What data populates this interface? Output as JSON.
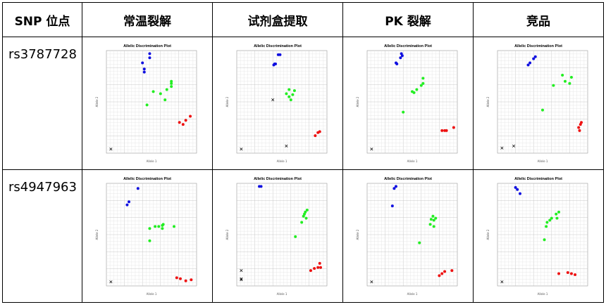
{
  "table": {
    "headers": [
      "SNP 位点",
      "常温裂解",
      "试剂盒提取",
      "PK 裂解",
      "竞品"
    ],
    "rows": [
      {
        "snp": "rs3787728"
      },
      {
        "snp": "rs4947963"
      }
    ]
  },
  "plot_common": {
    "title": "Allelic Discrimination Plot",
    "xlabel": "Allele 1",
    "ylabel": "Allele 2"
  },
  "colors": {
    "allele2": "#1010e0",
    "heterozygous": "#22ee22",
    "allele1": "#ee1111",
    "undetermined": "#000000"
  },
  "chart_data": [
    {
      "type": "scatter",
      "row": "rs3787728",
      "method": "常温裂解",
      "xlim": [
        0,
        1
      ],
      "ylim": [
        0,
        1
      ],
      "grid": true,
      "blue": [
        [
          0.48,
          0.97
        ],
        [
          0.48,
          0.93
        ],
        [
          0.4,
          0.88
        ],
        [
          0.42,
          0.82
        ],
        [
          0.42,
          0.79
        ]
      ],
      "green": [
        [
          0.45,
          0.47
        ],
        [
          0.52,
          0.6
        ],
        [
          0.6,
          0.58
        ],
        [
          0.67,
          0.62
        ],
        [
          0.72,
          0.65
        ],
        [
          0.72,
          0.68
        ],
        [
          0.72,
          0.7
        ],
        [
          0.65,
          0.52
        ]
      ],
      "red": [
        [
          0.81,
          0.3
        ],
        [
          0.85,
          0.28
        ],
        [
          0.88,
          0.32
        ],
        [
          0.93,
          0.36
        ]
      ],
      "x": [
        [
          0.05,
          0.04
        ]
      ]
    },
    {
      "type": "scatter",
      "row": "rs3787728",
      "method": "试剂盒提取",
      "xlim": [
        0,
        1
      ],
      "ylim": [
        0,
        1
      ],
      "grid": true,
      "blue": [
        [
          0.46,
          0.96
        ],
        [
          0.48,
          0.96
        ],
        [
          0.42,
          0.87
        ],
        [
          0.41,
          0.86
        ],
        [
          0.43,
          0.87
        ]
      ],
      "green": [
        [
          0.55,
          0.58
        ],
        [
          0.58,
          0.55
        ],
        [
          0.62,
          0.57
        ],
        [
          0.64,
          0.61
        ],
        [
          0.58,
          0.62
        ],
        [
          0.6,
          0.52
        ]
      ],
      "red": [
        [
          0.87,
          0.17
        ],
        [
          0.9,
          0.2
        ],
        [
          0.92,
          0.21
        ]
      ],
      "x": [
        [
          0.05,
          0.04
        ],
        [
          0.4,
          0.52
        ],
        [
          0.55,
          0.07
        ]
      ]
    },
    {
      "type": "scatter",
      "row": "rs3787728",
      "method": "PK 裂解",
      "xlim": [
        0,
        1
      ],
      "ylim": [
        0,
        1
      ],
      "grid": true,
      "blue": [
        [
          0.38,
          0.97
        ],
        [
          0.39,
          0.95
        ],
        [
          0.37,
          0.93
        ],
        [
          0.32,
          0.88
        ],
        [
          0.33,
          0.87
        ]
      ],
      "green": [
        [
          0.5,
          0.6
        ],
        [
          0.55,
          0.62
        ],
        [
          0.6,
          0.66
        ],
        [
          0.62,
          0.68
        ],
        [
          0.62,
          0.73
        ],
        [
          0.52,
          0.59
        ],
        [
          0.4,
          0.4
        ]
      ],
      "red": [
        [
          0.83,
          0.22
        ],
        [
          0.86,
          0.22
        ],
        [
          0.88,
          0.22
        ],
        [
          0.96,
          0.25
        ]
      ],
      "x": [
        [
          0.05,
          0.04
        ]
      ]
    },
    {
      "type": "scatter",
      "row": "rs3787728",
      "method": "竞品",
      "xlim": [
        0,
        1
      ],
      "ylim": [
        0,
        1
      ],
      "grid": true,
      "blue": [
        [
          0.4,
          0.92
        ],
        [
          0.42,
          0.94
        ],
        [
          0.36,
          0.88
        ],
        [
          0.34,
          0.86
        ]
      ],
      "green": [
        [
          0.62,
          0.66
        ],
        [
          0.75,
          0.7
        ],
        [
          0.72,
          0.76
        ],
        [
          0.8,
          0.68
        ],
        [
          0.82,
          0.74
        ],
        [
          0.5,
          0.42
        ]
      ],
      "red": [
        [
          0.9,
          0.25
        ],
        [
          0.92,
          0.28
        ],
        [
          0.93,
          0.3
        ],
        [
          0.91,
          0.22
        ]
      ],
      "x": [
        [
          0.05,
          0.05
        ],
        [
          0.18,
          0.07
        ]
      ]
    },
    {
      "type": "scatter",
      "row": "rs4947963",
      "method": "常温裂解",
      "xlim": [
        0,
        1
      ],
      "ylim": [
        0,
        1
      ],
      "grid": true,
      "blue": [
        [
          0.35,
          0.95
        ],
        [
          0.25,
          0.82
        ],
        [
          0.23,
          0.79
        ]
      ],
      "green": [
        [
          0.48,
          0.56
        ],
        [
          0.54,
          0.58
        ],
        [
          0.58,
          0.58
        ],
        [
          0.62,
          0.59
        ],
        [
          0.63,
          0.6
        ],
        [
          0.62,
          0.56
        ],
        [
          0.75,
          0.58
        ],
        [
          0.48,
          0.44
        ]
      ],
      "red": [
        [
          0.78,
          0.08
        ],
        [
          0.82,
          0.07
        ],
        [
          0.88,
          0.05
        ],
        [
          0.94,
          0.06
        ]
      ],
      "x": [
        [
          0.05,
          0.04
        ]
      ]
    },
    {
      "type": "scatter",
      "row": "rs4947963",
      "method": "试剂盒提取",
      "xlim": [
        0,
        1
      ],
      "ylim": [
        0,
        1
      ],
      "grid": true,
      "blue": [
        [
          0.25,
          0.97
        ],
        [
          0.27,
          0.97
        ]
      ],
      "green": [
        [
          0.74,
          0.68
        ],
        [
          0.76,
          0.72
        ],
        [
          0.75,
          0.7
        ],
        [
          0.78,
          0.74
        ],
        [
          0.77,
          0.66
        ],
        [
          0.72,
          0.62
        ],
        [
          0.65,
          0.48
        ]
      ],
      "red": [
        [
          0.82,
          0.15
        ],
        [
          0.86,
          0.17
        ],
        [
          0.9,
          0.18
        ],
        [
          0.92,
          0.22
        ],
        [
          0.93,
          0.18
        ]
      ],
      "x": [
        [
          0.05,
          0.15
        ],
        [
          0.05,
          0.07
        ],
        [
          0.05,
          0.06
        ]
      ]
    },
    {
      "type": "scatter",
      "row": "rs4947963",
      "method": "PK 裂解",
      "xlim": [
        0,
        1
      ],
      "ylim": [
        0,
        1
      ],
      "grid": true,
      "blue": [
        [
          0.32,
          0.97
        ],
        [
          0.3,
          0.95
        ],
        [
          0.28,
          0.78
        ]
      ],
      "green": [
        [
          0.71,
          0.65
        ],
        [
          0.73,
          0.68
        ],
        [
          0.74,
          0.64
        ],
        [
          0.76,
          0.66
        ],
        [
          0.7,
          0.6
        ],
        [
          0.74,
          0.58
        ],
        [
          0.58,
          0.42
        ]
      ],
      "red": [
        [
          0.8,
          0.1
        ],
        [
          0.83,
          0.12
        ],
        [
          0.86,
          0.14
        ],
        [
          0.94,
          0.15
        ]
      ],
      "x": [
        [
          0.05,
          0.04
        ]
      ]
    },
    {
      "type": "scatter",
      "row": "rs4947963",
      "method": "竞品",
      "xlim": [
        0,
        1
      ],
      "ylim": [
        0,
        1
      ],
      "grid": true,
      "blue": [
        [
          0.2,
          0.96
        ],
        [
          0.22,
          0.94
        ],
        [
          0.25,
          0.9
        ]
      ],
      "green": [
        [
          0.55,
          0.62
        ],
        [
          0.58,
          0.64
        ],
        [
          0.6,
          0.66
        ],
        [
          0.65,
          0.7
        ],
        [
          0.68,
          0.72
        ],
        [
          0.66,
          0.66
        ],
        [
          0.54,
          0.58
        ],
        [
          0.52,
          0.45
        ]
      ],
      "red": [
        [
          0.68,
          0.12
        ],
        [
          0.78,
          0.13
        ],
        [
          0.82,
          0.12
        ],
        [
          0.86,
          0.11
        ]
      ],
      "x": [
        [
          0.05,
          0.04
        ]
      ]
    }
  ]
}
